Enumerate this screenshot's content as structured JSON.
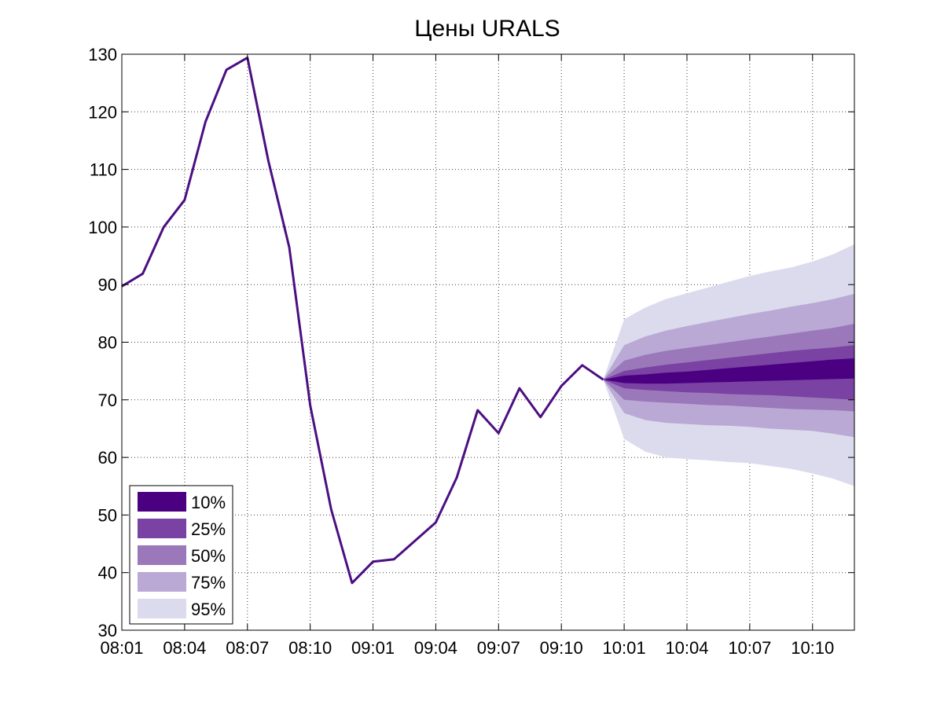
{
  "chart_data": {
    "type": "area",
    "title": "Цены URALS",
    "xlabel": "",
    "ylabel": "",
    "ylim": [
      30,
      130
    ],
    "yticks": [
      30,
      40,
      50,
      60,
      70,
      80,
      90,
      100,
      110,
      120,
      130
    ],
    "xlim": [
      0,
      35
    ],
    "xticks": [
      {
        "pos": 0,
        "label": "08:01"
      },
      {
        "pos": 3,
        "label": "08:04"
      },
      {
        "pos": 6,
        "label": "08:07"
      },
      {
        "pos": 9,
        "label": "08:10"
      },
      {
        "pos": 12,
        "label": "09:01"
      },
      {
        "pos": 15,
        "label": "09:04"
      },
      {
        "pos": 18,
        "label": "09:07"
      },
      {
        "pos": 21,
        "label": "09:10"
      },
      {
        "pos": 24,
        "label": "10:01"
      },
      {
        "pos": 27,
        "label": "10:04"
      },
      {
        "pos": 30,
        "label": "10:07"
      },
      {
        "pos": 33,
        "label": "10:10"
      }
    ],
    "grid": true,
    "legend_position": "bottom-left",
    "line": {
      "name": "URALS",
      "color": "#4b0f82",
      "x": [
        0,
        1,
        2,
        3,
        4,
        5,
        6,
        7,
        8,
        9,
        10,
        11,
        12,
        13,
        14,
        15,
        16,
        17,
        18,
        19,
        20,
        21,
        22,
        23
      ],
      "y": [
        89.7,
        91.9,
        100.0,
        104.7,
        118.3,
        127.3,
        129.4,
        111.5,
        96.5,
        69.0,
        51.0,
        38.2,
        41.9,
        42.3,
        45.5,
        48.7,
        56.5,
        68.2,
        64.2,
        72.0,
        67.0,
        72.4,
        76.0,
        73.5
      ]
    },
    "fan": {
      "x": [
        23,
        24,
        25,
        26,
        27,
        28,
        29,
        30,
        31,
        32,
        33,
        34,
        35
      ],
      "bands": [
        {
          "name": "95%",
          "color": "#dcdbed",
          "upper": [
            73.5,
            84.0,
            86.0,
            87.5,
            88.5,
            89.5,
            90.5,
            91.5,
            92.3,
            93.0,
            94.0,
            95.3,
            97.0
          ],
          "lower": [
            73.5,
            63.2,
            61.0,
            60.0,
            59.7,
            59.5,
            59.2,
            59.0,
            58.5,
            58.0,
            57.2,
            56.3,
            55.0
          ]
        },
        {
          "name": "75%",
          "color": "#b9a9d4",
          "upper": [
            73.5,
            79.5,
            81.0,
            82.0,
            82.8,
            83.5,
            84.2,
            84.9,
            85.5,
            86.2,
            86.8,
            87.5,
            88.4
          ]
        },
        {
          "name": "50%",
          "color": "#9a78ba",
          "upper": [
            73.5,
            76.8,
            77.8,
            78.5,
            79.0,
            79.5,
            80.0,
            80.5,
            81.0,
            81.5,
            82.0,
            82.5,
            83.2
          ]
        },
        {
          "name": "25%",
          "color": "#7a42a3",
          "upper": [
            73.5,
            75.0,
            75.6,
            76.1,
            76.5,
            76.9,
            77.3,
            77.7,
            78.1,
            78.5,
            78.8,
            79.1,
            79.5
          ]
        },
        {
          "name": "10%",
          "color": "#4b0082",
          "upper": [
            73.5,
            74.2,
            74.4,
            74.7,
            74.9,
            75.2,
            75.5,
            75.8,
            76.1,
            76.4,
            76.7,
            77.0,
            77.2
          ]
        }
      ],
      "lower_25": [
        73.5,
        72.0,
        71.7,
        71.5,
        71.3,
        71.2,
        71.0,
        70.9,
        70.8,
        70.6,
        70.4,
        70.2,
        70.0
      ],
      "lower_50": [
        73.5,
        70.0,
        69.7,
        69.5,
        69.3,
        69.1,
        69.0,
        68.8,
        68.6,
        68.4,
        68.3,
        68.2,
        68.0
      ],
      "lower_75": [
        73.5,
        67.7,
        66.5,
        66.0,
        65.8,
        65.6,
        65.5,
        65.3,
        65.0,
        64.8,
        64.6,
        64.1,
        63.5
      ],
      "lower_10": [
        73.5,
        72.9,
        72.8,
        72.8,
        72.9,
        73.0,
        73.1,
        73.2,
        73.3,
        73.4,
        73.5,
        73.6,
        73.7
      ]
    },
    "legend": [
      {
        "label": "10%",
        "color": "#4b0082"
      },
      {
        "label": "25%",
        "color": "#7a42a3"
      },
      {
        "label": "50%",
        "color": "#9a78ba"
      },
      {
        "label": "75%",
        "color": "#b9a9d4"
      },
      {
        "label": "95%",
        "color": "#dcdbed"
      }
    ]
  }
}
